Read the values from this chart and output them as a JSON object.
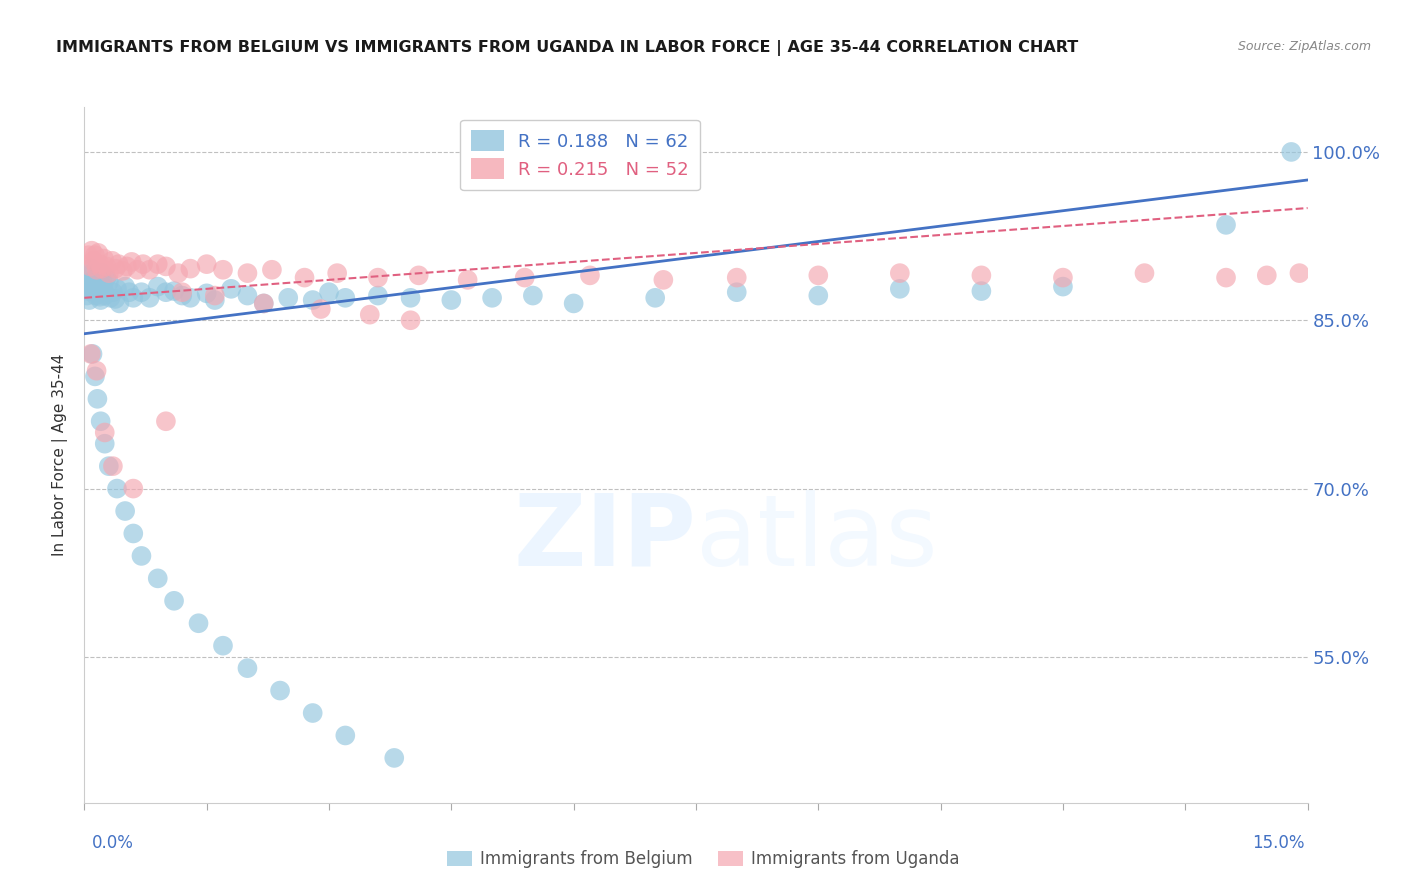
{
  "title": "IMMIGRANTS FROM BELGIUM VS IMMIGRANTS FROM UGANDA IN LABOR FORCE | AGE 35-44 CORRELATION CHART",
  "source": "Source: ZipAtlas.com",
  "ylabel": "In Labor Force | Age 35-44",
  "y_ticks": [
    0.55,
    0.7,
    0.85,
    1.0
  ],
  "y_tick_labels": [
    "55.0%",
    "70.0%",
    "85.0%",
    "100.0%"
  ],
  "xlim": [
    0.0,
    0.15
  ],
  "ylim": [
    0.42,
    1.04
  ],
  "belgium_color": "#92C5DE",
  "uganda_color": "#F4A6B0",
  "belgium_line_color": "#4472C4",
  "uganda_line_color": "#E06080",
  "belgium_R": 0.188,
  "belgium_N": 62,
  "uganda_R": 0.215,
  "uganda_N": 52,
  "title_color": "#1a1a1a",
  "axis_color": "#4472C4",
  "background_color": "#ffffff",
  "grid_color": "#c0c0c0",
  "title_fontsize": 11.5,
  "source_fontsize": 9,
  "belgium_x": [
    0.0003,
    0.0004,
    0.0005,
    0.0006,
    0.0007,
    0.0008,
    0.001,
    0.0011,
    0.0012,
    0.0013,
    0.0014,
    0.0015,
    0.0016,
    0.0017,
    0.0018,
    0.0019,
    0.002,
    0.0021,
    0.0022,
    0.0023,
    0.0024,
    0.0025,
    0.0027,
    0.003,
    0.0032,
    0.0035,
    0.0038,
    0.004,
    0.0043,
    0.005,
    0.0055,
    0.006,
    0.007,
    0.008,
    0.009,
    0.01,
    0.011,
    0.012,
    0.013,
    0.015,
    0.016,
    0.018,
    0.02,
    0.022,
    0.025,
    0.028,
    0.03,
    0.032,
    0.036,
    0.04,
    0.045,
    0.05,
    0.055,
    0.06,
    0.07,
    0.08,
    0.09,
    0.1,
    0.11,
    0.12,
    0.14,
    0.148
  ],
  "belgium_y": [
    0.872,
    0.882,
    0.876,
    0.868,
    0.891,
    0.896,
    0.885,
    0.878,
    0.884,
    0.887,
    0.872,
    0.89,
    0.882,
    0.878,
    0.875,
    0.871,
    0.868,
    0.892,
    0.886,
    0.88,
    0.876,
    0.872,
    0.888,
    0.884,
    0.87,
    0.875,
    0.869,
    0.878,
    0.865,
    0.88,
    0.875,
    0.87,
    0.875,
    0.87,
    0.88,
    0.875,
    0.876,
    0.872,
    0.87,
    0.874,
    0.868,
    0.878,
    0.872,
    0.865,
    0.87,
    0.868,
    0.875,
    0.87,
    0.872,
    0.87,
    0.868,
    0.87,
    0.872,
    0.865,
    0.87,
    0.875,
    0.872,
    0.878,
    0.876,
    0.88,
    0.935,
    1.0
  ],
  "belgium_y_outliers": [
    0.82,
    0.8,
    0.78,
    0.76,
    0.74,
    0.72,
    0.7,
    0.68,
    0.66,
    0.64,
    0.62,
    0.6,
    0.58,
    0.56,
    0.54,
    0.52,
    0.5,
    0.48,
    0.46
  ],
  "belgium_x_outliers": [
    0.001,
    0.0013,
    0.0016,
    0.002,
    0.0025,
    0.003,
    0.004,
    0.005,
    0.006,
    0.007,
    0.009,
    0.011,
    0.014,
    0.017,
    0.02,
    0.024,
    0.028,
    0.032,
    0.038
  ],
  "uganda_x": [
    0.0005,
    0.0007,
    0.0009,
    0.0011,
    0.0013,
    0.0015,
    0.0017,
    0.0019,
    0.0021,
    0.0024,
    0.0027,
    0.003,
    0.0034,
    0.0038,
    0.0042,
    0.0047,
    0.0052,
    0.0058,
    0.0065,
    0.0072,
    0.008,
    0.009,
    0.01,
    0.0115,
    0.013,
    0.015,
    0.017,
    0.02,
    0.023,
    0.027,
    0.031,
    0.036,
    0.041,
    0.047,
    0.054,
    0.062,
    0.071,
    0.08,
    0.09,
    0.1,
    0.11,
    0.12,
    0.13,
    0.14,
    0.145,
    0.149,
    0.035,
    0.04,
    0.012,
    0.016,
    0.022,
    0.029
  ],
  "uganda_y": [
    0.908,
    0.898,
    0.912,
    0.903,
    0.908,
    0.895,
    0.91,
    0.9,
    0.896,
    0.905,
    0.898,
    0.892,
    0.903,
    0.896,
    0.9,
    0.894,
    0.898,
    0.902,
    0.895,
    0.9,
    0.895,
    0.9,
    0.898,
    0.892,
    0.896,
    0.9,
    0.895,
    0.892,
    0.895,
    0.888,
    0.892,
    0.888,
    0.89,
    0.886,
    0.888,
    0.89,
    0.886,
    0.888,
    0.89,
    0.892,
    0.89,
    0.888,
    0.892,
    0.888,
    0.89,
    0.892,
    0.855,
    0.85,
    0.875,
    0.872,
    0.865,
    0.86
  ],
  "uganda_y_outliers": [
    0.82,
    0.805,
    0.75,
    0.72,
    0.7,
    0.76
  ],
  "uganda_x_outliers": [
    0.0008,
    0.0015,
    0.0025,
    0.0035,
    0.006,
    0.01
  ],
  "bel_line_x0": 0.0,
  "bel_line_y0": 0.838,
  "bel_line_x1": 0.15,
  "bel_line_y1": 0.975,
  "uga_line_x0": 0.0,
  "uga_line_y0": 0.87,
  "uga_line_x1": 0.15,
  "uga_line_y1": 0.95
}
